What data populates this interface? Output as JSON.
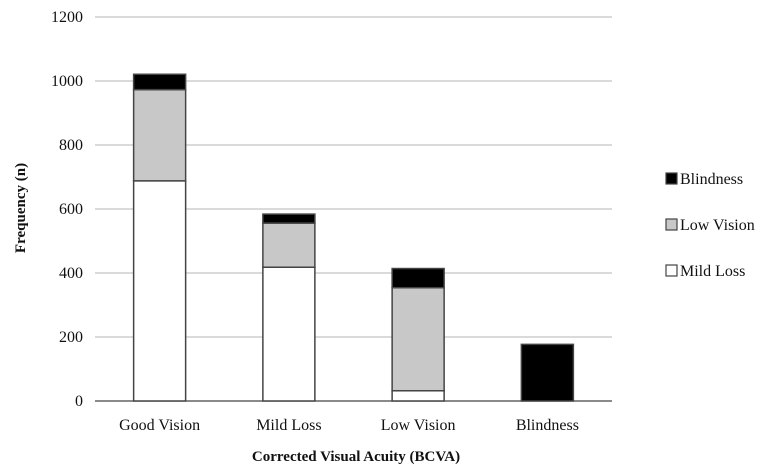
{
  "chart_data": {
    "type": "bar",
    "stacked": true,
    "title": "",
    "xlabel": "Corrected Visual Acuity (BCVA)",
    "ylabel": "Frequency  (n)",
    "ylim": [
      0,
      1200
    ],
    "yticks": [
      0,
      200,
      400,
      600,
      800,
      1000,
      1200
    ],
    "grid": true,
    "legend_position": "right",
    "categories": [
      "Good Vision",
      "Mild Loss",
      "Low Vision",
      "Blindness"
    ],
    "series": [
      {
        "name": "Mild Loss",
        "color": "#ffffff",
        "values": [
          688,
          418,
          32,
          0
        ]
      },
      {
        "name": "Low Vision",
        "color": "#c8c8c8",
        "values": [
          285,
          138,
          322,
          0
        ]
      },
      {
        "name": "Blindness",
        "color": "#000000",
        "values": [
          48,
          28,
          60,
          177
        ]
      }
    ],
    "legend_order": [
      "Blindness",
      "Low Vision",
      "Mild Loss"
    ]
  }
}
